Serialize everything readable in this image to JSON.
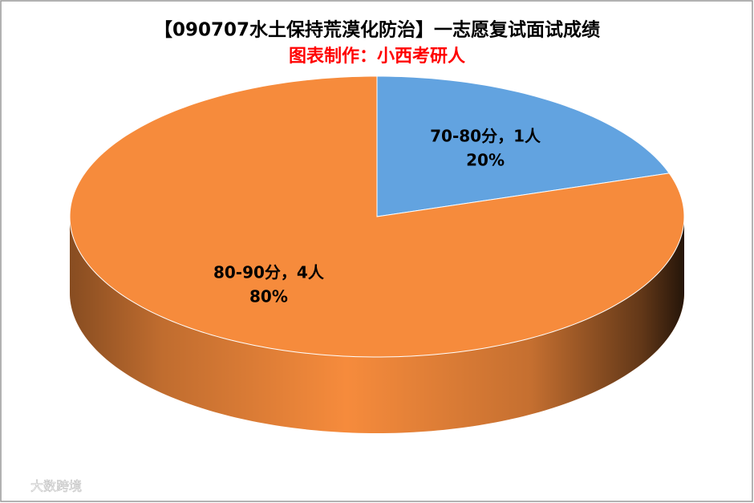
{
  "chart_data": {
    "type": "pie3d",
    "title": "【090707水土保持荒漠化防治】一志愿复试面试成绩",
    "subtitle": "图表制作：小西考研人",
    "categories": [
      "70-80分，1人",
      "80-90分，4人"
    ],
    "values": [
      20,
      80
    ],
    "value_labels": [
      "20%",
      "80%"
    ],
    "colors": [
      "#62a3e0",
      "#f68b3c"
    ],
    "watermark": "大数跨境"
  }
}
